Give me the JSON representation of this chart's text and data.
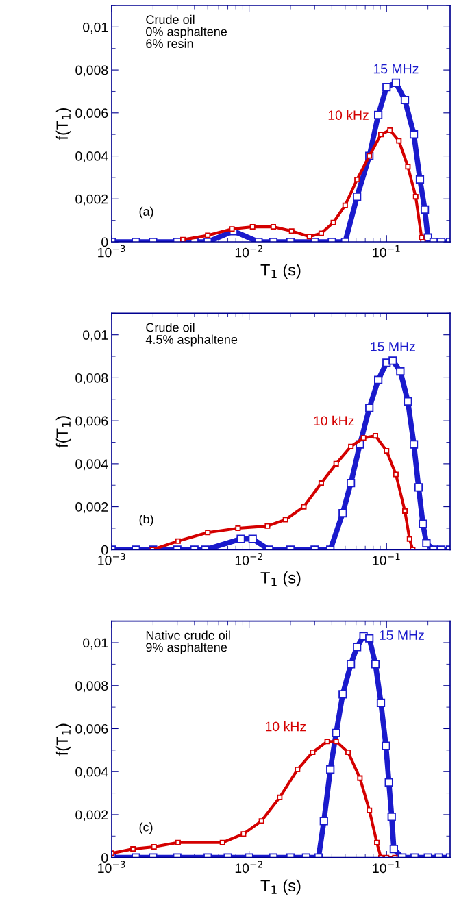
{
  "chart_data": [
    {
      "type": "line",
      "xlabel": "T$_{1}$ (s)",
      "ylabel": "f(T$_{1}$)",
      "annotations": [
        "Crude oil\n0% asphaltene\n6% resin",
        "(a)"
      ],
      "log": "x",
      "marker": "square",
      "legend": false,
      "grid": false,
      "xlim": [
        0.001,
        0.29
      ],
      "ylim": [
        0,
        0.011
      ],
      "xticks": [
        {
          "value": 0.001,
          "label": "10$^{−3}$"
        },
        {
          "value": 0.01,
          "label": "10$^{−2}$"
        },
        {
          "value": 0.1,
          "label": "10$^{−1}$"
        }
      ],
      "yticks": [
        0,
        {
          "value": 0.002,
          "label": "0,002"
        },
        {
          "value": 0.004,
          "label": "0,004"
        },
        {
          "value": 0.006,
          "label": "0,006"
        },
        {
          "value": 0.008,
          "label": "0,008"
        },
        {
          "value": 0.01,
          "label": "0,01"
        }
      ],
      "series": [
        {
          "name": "15 MHz",
          "color": "#1a1acc",
          "x": [
            0.001,
            0.0015,
            0.002,
            0.003,
            0.004,
            0.005,
            0.0077,
            0.0117,
            0.015,
            0.02,
            0.03,
            0.04,
            0.05,
            0.061,
            0.075,
            0.087,
            0.1,
            0.117,
            0.136,
            0.158,
            0.175,
            0.19,
            0.2,
            0.22,
            0.25,
            0.29
          ],
          "values": [
            0,
            0,
            0,
            0,
            0,
            0,
            0.0005,
            0,
            0,
            0,
            0,
            0,
            0,
            0.0021,
            0.004,
            0.0059,
            0.0072,
            0.0074,
            0.0066,
            0.005,
            0.0029,
            0.0015,
            0.0002,
            0,
            0,
            0
          ]
        },
        {
          "name": "10 kHz",
          "color": "#d40000",
          "x": [
            0.0033,
            0.005,
            0.0075,
            0.0106,
            0.015,
            0.0204,
            0.0275,
            0.0335,
            0.041,
            0.05,
            0.061,
            0.075,
            0.091,
            0.106,
            0.123,
            0.143,
            0.163,
            0.18,
            0.184
          ],
          "values": [
            0.0001,
            0.0003,
            0.0006,
            0.0007,
            0.0007,
            0.0005,
            0.00025,
            0.0004,
            0.0009,
            0.0017,
            0.0029,
            0.004,
            0.005,
            0.0052,
            0.0047,
            0.0035,
            0.0021,
            0.0002,
            0
          ]
        }
      ]
    },
    {
      "type": "line",
      "xlabel": "T$_{1}$ (s)",
      "ylabel": "f(T$_{1}$)",
      "annotations": [
        "Crude oil\n4.5% asphaltene",
        "(b)"
      ],
      "log": "x",
      "marker": "square",
      "legend": false,
      "grid": false,
      "xlim": [
        0.001,
        0.29
      ],
      "ylim": [
        0,
        0.011
      ],
      "xticks": [
        {
          "value": 0.001,
          "label": "10$^{−3}$"
        },
        {
          "value": 0.01,
          "label": "10$^{−2}$"
        },
        {
          "value": 0.1,
          "label": "10$^{−1}$"
        }
      ],
      "yticks": [
        0,
        {
          "value": 0.002,
          "label": "0,002"
        },
        {
          "value": 0.004,
          "label": "0,004"
        },
        {
          "value": 0.006,
          "label": "0,006"
        },
        {
          "value": 0.008,
          "label": "0,008"
        },
        {
          "value": 0.01,
          "label": "0,01"
        }
      ],
      "series": [
        {
          "name": "15 MHz",
          "color": "#1a1acc",
          "x": [
            0.001,
            0.0015,
            0.002,
            0.003,
            0.004,
            0.0048,
            0.0087,
            0.0106,
            0.014,
            0.02,
            0.03,
            0.039,
            0.048,
            0.055,
            0.064,
            0.075,
            0.087,
            0.1,
            0.111,
            0.126,
            0.143,
            0.158,
            0.171,
            0.184,
            0.195,
            0.22,
            0.25,
            0.29
          ],
          "values": [
            0,
            0,
            0,
            0,
            0,
            0,
            0.0005,
            0.0005,
            0,
            0,
            0,
            0,
            0.0017,
            0.0031,
            0.0049,
            0.0066,
            0.0079,
            0.0087,
            0.0088,
            0.0083,
            0.0069,
            0.0049,
            0.0029,
            0.0012,
            0.0003,
            0,
            0,
            0
          ]
        },
        {
          "name": "10 kHz",
          "color": "#d40000",
          "x": [
            0.00198,
            0.00304,
            0.005,
            0.0083,
            0.0136,
            0.0184,
            0.025,
            0.0335,
            0.043,
            0.055,
            0.068,
            0.083,
            0.1,
            0.117,
            0.136,
            0.147,
            0.155
          ],
          "values": [
            0,
            0.0004,
            0.0008,
            0.001,
            0.0011,
            0.0014,
            0.002,
            0.0031,
            0.004,
            0.0048,
            0.0052,
            0.0053,
            0.0046,
            0.0035,
            0.0018,
            0.0005,
            0
          ]
        }
      ]
    },
    {
      "type": "line",
      "xlabel": "T$_{1}$ (s)",
      "ylabel": "f(T$_{1}$)",
      "annotations": [
        "Native crude oil\n9% asphaltene",
        "(c)"
      ],
      "log": "x",
      "marker": "square",
      "legend": false,
      "grid": false,
      "xlim": [
        0.001,
        0.29
      ],
      "ylim": [
        0,
        0.011
      ],
      "xticks": [
        {
          "value": 0.001,
          "label": "10$^{−3}$"
        },
        {
          "value": 0.01,
          "label": "10$^{−2}$"
        },
        {
          "value": 0.1,
          "label": "10$^{−1}$"
        }
      ],
      "yticks": [
        0,
        {
          "value": 0.002,
          "label": "0,002"
        },
        {
          "value": 0.004,
          "label": "0,004"
        },
        {
          "value": 0.006,
          "label": "0,006"
        },
        {
          "value": 0.008,
          "label": "0,008"
        },
        {
          "value": 0.01,
          "label": "0,01"
        }
      ],
      "series": [
        {
          "name": "15 MHz",
          "color": "#1a1acc",
          "x": [
            0.001,
            0.0015,
            0.002,
            0.003,
            0.005,
            0.007,
            0.01,
            0.015,
            0.02,
            0.026,
            0.032,
            0.035,
            0.039,
            0.043,
            0.048,
            0.055,
            0.061,
            0.068,
            0.075,
            0.083,
            0.091,
            0.099,
            0.104,
            0.109,
            0.113,
            0.13,
            0.16,
            0.2,
            0.24,
            0.29
          ],
          "values": [
            0,
            0,
            0,
            0,
            0,
            0,
            0,
            0,
            0,
            0,
            0,
            0.0017,
            0.0041,
            0.0058,
            0.0076,
            0.009,
            0.0098,
            0.0103,
            0.0102,
            0.009,
            0.0072,
            0.0052,
            0.0035,
            0.0019,
            0.0004,
            0,
            0,
            0,
            0,
            0
          ]
        },
        {
          "name": "10 kHz",
          "color": "#d40000",
          "x": [
            0.001,
            0.00143,
            0.00203,
            0.00304,
            0.0064,
            0.0091,
            0.0123,
            0.0167,
            0.0225,
            0.029,
            0.037,
            0.043,
            0.0525,
            0.064,
            0.075,
            0.085,
            0.091,
            0.1,
            0.115
          ],
          "values": [
            0.0002,
            0.0004,
            0.0005,
            0.0007,
            0.0007,
            0.0011,
            0.0017,
            0.0028,
            0.0041,
            0.0049,
            0.0054,
            0.0054,
            0.0049,
            0.0037,
            0.0022,
            0.0007,
            0,
            0,
            0
          ]
        }
      ]
    }
  ]
}
